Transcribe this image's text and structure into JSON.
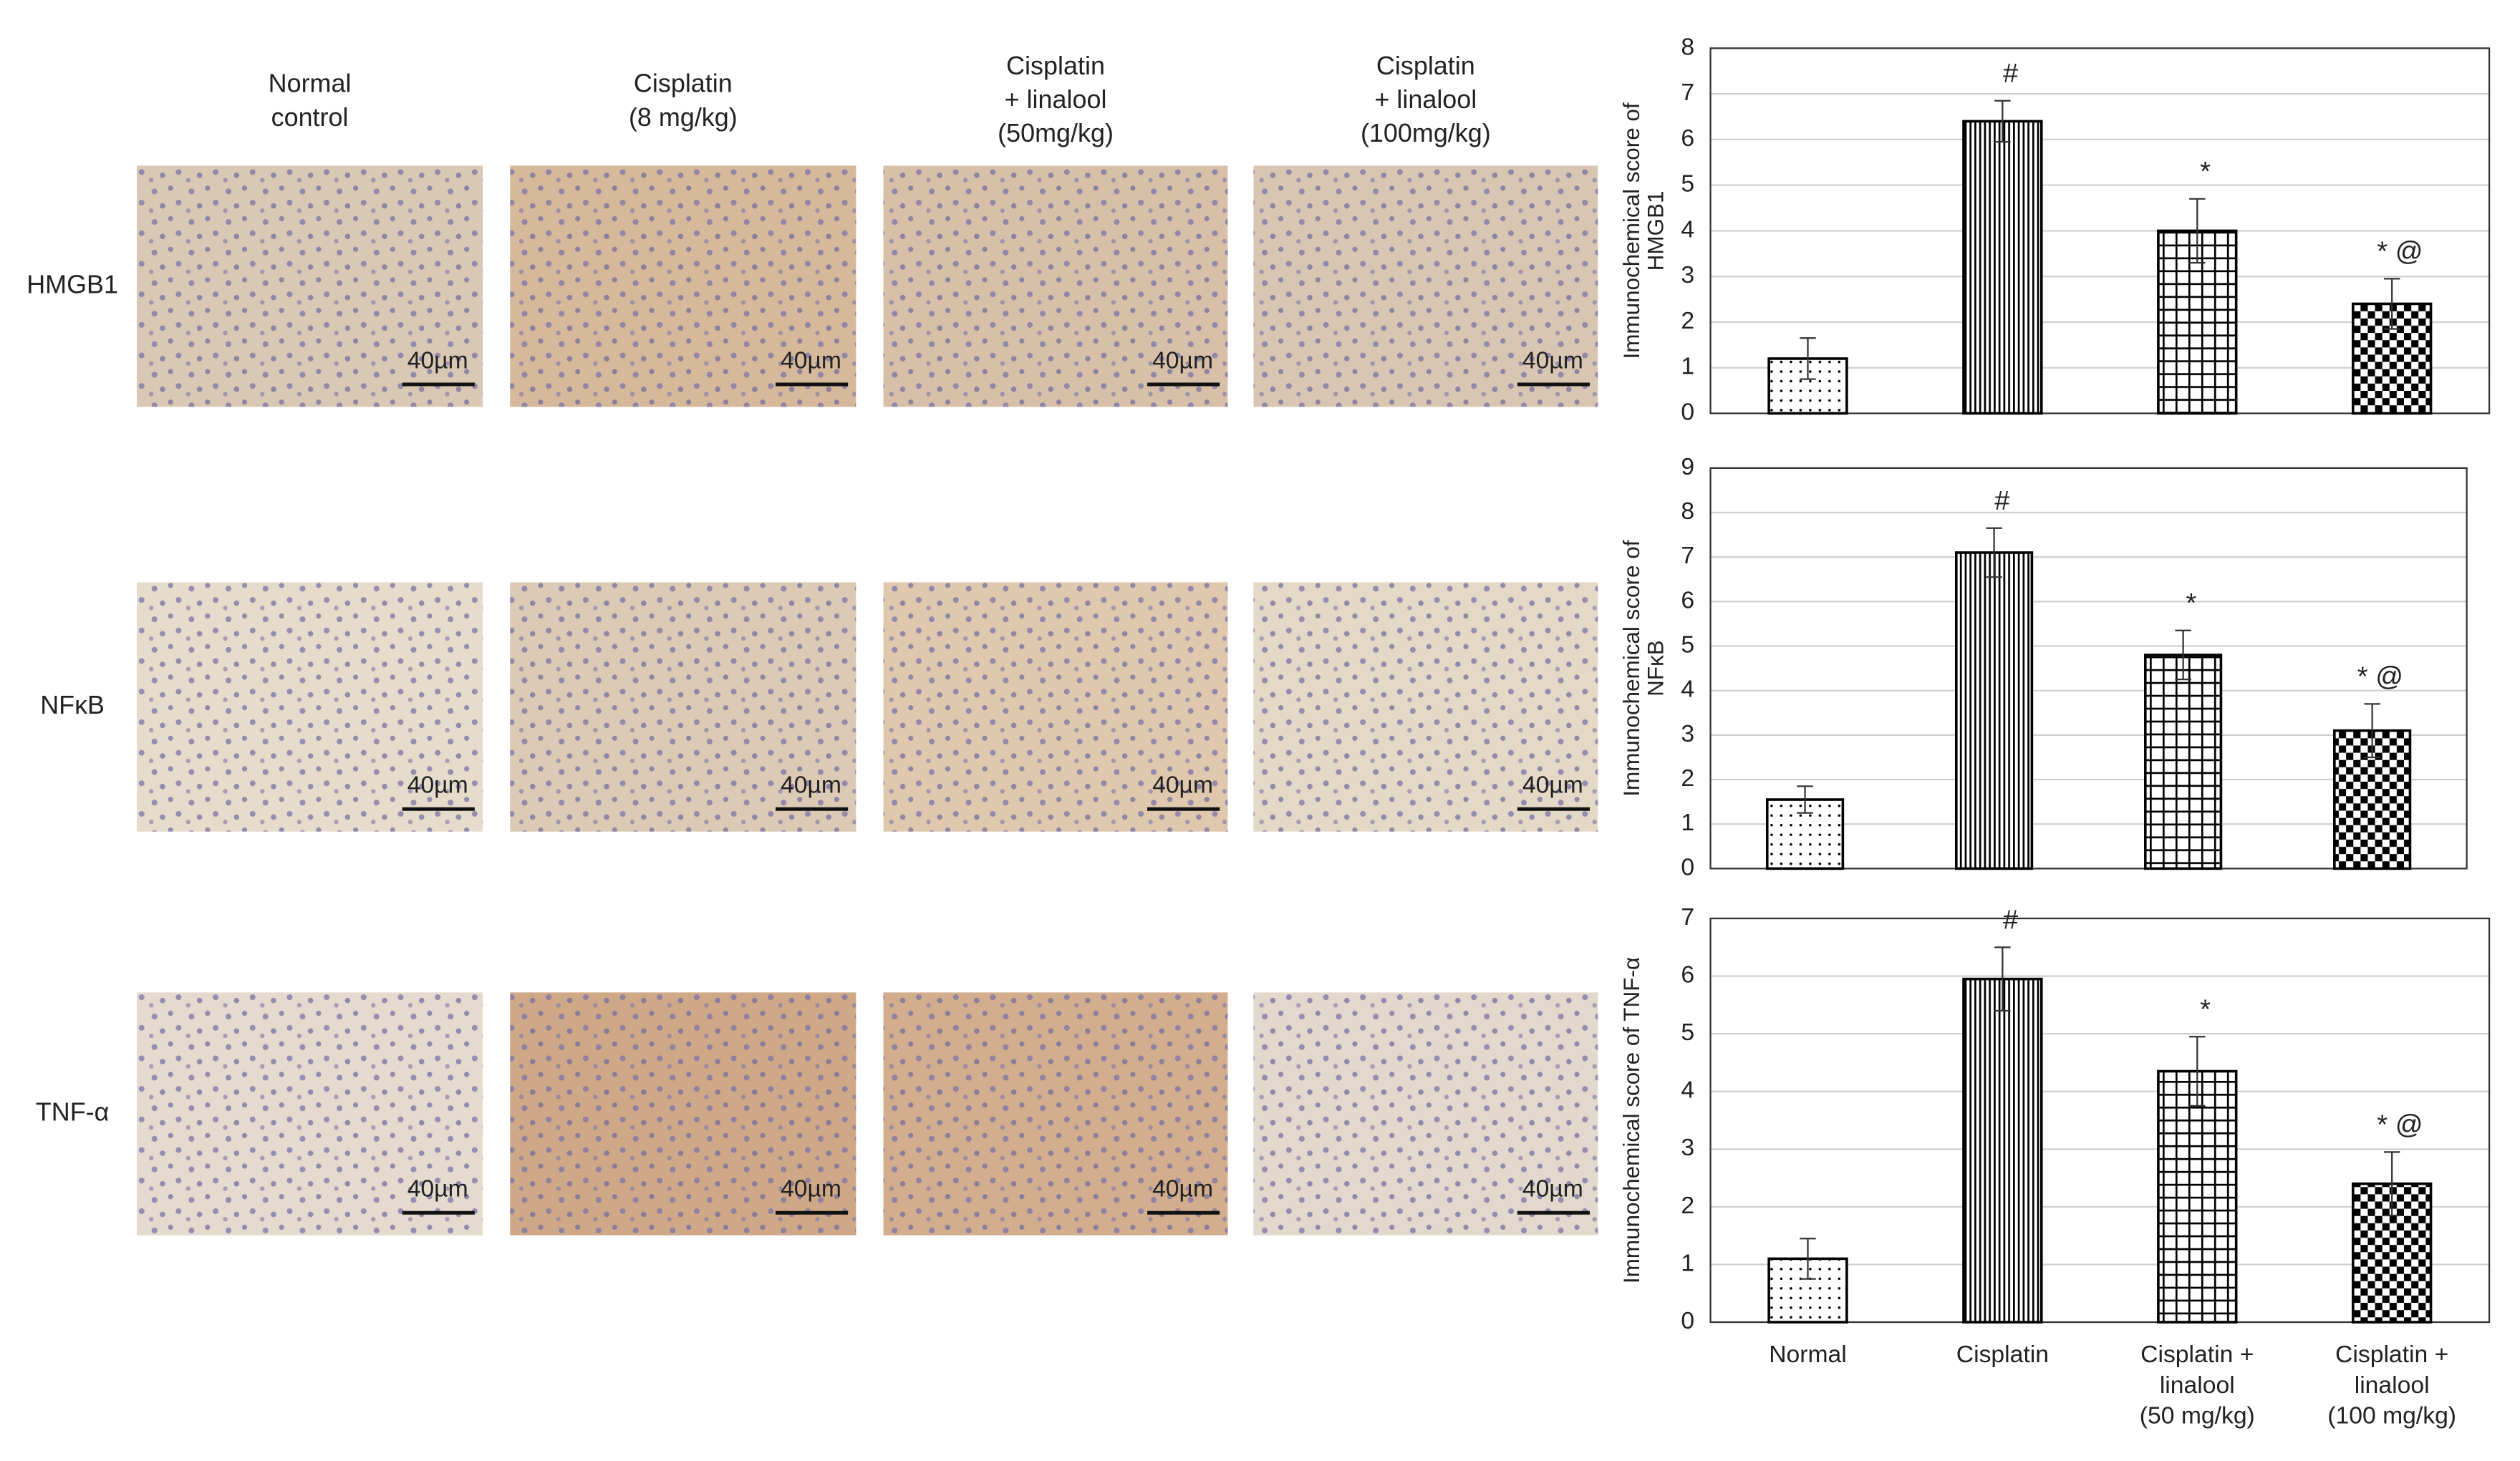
{
  "micrographs": {
    "columns": [
      [
        "Normal",
        "control"
      ],
      [
        "Cisplatin",
        "(8 mg/kg)"
      ],
      [
        "Cisplatin",
        "+ linalool",
        "(50mg/kg)"
      ],
      [
        "Cisplatin",
        "+ linalool",
        "(100mg/kg)"
      ]
    ],
    "rows": [
      "HMGB1",
      "NFκB",
      "TNF-α"
    ],
    "scale_bar": "40µm"
  },
  "chart_data": [
    {
      "type": "bar",
      "ylabel": [
        "Immunochemical score of",
        "HMGB1"
      ],
      "values": [
        1.2,
        6.4,
        4.0,
        2.4
      ],
      "errors": [
        0.45,
        0.45,
        0.7,
        0.55
      ],
      "value_annotations": [
        null,
        "#",
        "*",
        "* @"
      ],
      "patterns": [
        "dots",
        "vlines",
        "grid",
        "checker"
      ],
      "color": "#000000",
      "ylim": [
        0,
        8
      ],
      "yticks": [
        0,
        1,
        2,
        3,
        4,
        5,
        6,
        7,
        8
      ],
      "grid": true
    },
    {
      "type": "bar",
      "ylabel": [
        "Immunochemical score of",
        "NFκB"
      ],
      "values": [
        1.55,
        7.1,
        4.8,
        3.1
      ],
      "errors": [
        0.3,
        0.55,
        0.55,
        0.6
      ],
      "value_annotations": [
        null,
        "#",
        "*",
        "* @"
      ],
      "patterns": [
        "dots",
        "vlines",
        "grid",
        "checker"
      ],
      "color": "#000000",
      "ylim": [
        0,
        9
      ],
      "yticks": [
        0,
        1,
        2,
        3,
        4,
        5,
        6,
        7,
        8,
        9
      ],
      "grid": true
    },
    {
      "type": "bar",
      "ylabel": [
        "Immunochemical score of TNF-α"
      ],
      "categories": [
        [
          "Normal"
        ],
        [
          "Cisplatin"
        ],
        [
          "Cisplatin +",
          "linalool",
          "(50 mg/kg)"
        ],
        [
          "Cisplatin +",
          "linalool",
          "(100 mg/kg)"
        ]
      ],
      "values": [
        1.1,
        5.95,
        4.35,
        2.4
      ],
      "errors": [
        0.35,
        0.55,
        0.6,
        0.55
      ],
      "value_annotations": [
        null,
        "#",
        "*",
        "* @"
      ],
      "patterns": [
        "dots",
        "vlines",
        "grid",
        "checker"
      ],
      "color": "#000000",
      "ylim": [
        0,
        7
      ],
      "yticks": [
        0,
        1,
        2,
        3,
        4,
        5,
        6,
        7
      ],
      "grid": true
    }
  ]
}
